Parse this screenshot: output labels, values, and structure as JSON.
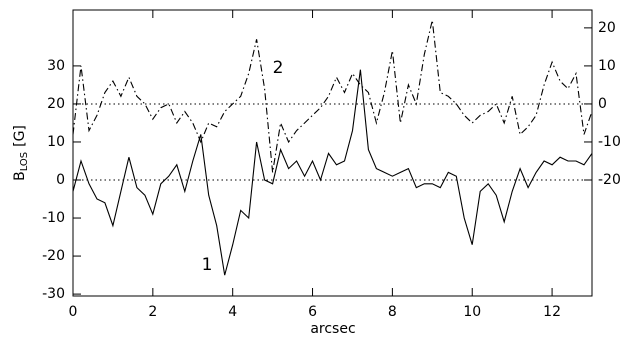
{
  "chart_data": {
    "type": "line",
    "xlabel": "arcsec",
    "ylabel": {
      "main": "B",
      "sub": "LOS",
      "rest": "[G]"
    },
    "annotations": [
      "1",
      "2"
    ],
    "x": [
      0,
      0.2,
      0.4,
      0.6,
      0.8,
      1,
      1.2,
      1.4,
      1.6,
      1.8,
      2,
      2.2,
      2.4,
      2.6,
      2.8,
      3,
      3.2,
      3.4,
      3.6,
      3.8,
      4,
      4.2,
      4.4,
      4.6,
      4.8,
      5,
      5.2,
      5.4,
      5.6,
      5.8,
      6,
      6.2,
      6.4,
      6.6,
      6.8,
      7,
      7.2,
      7.4,
      7.6,
      7.8,
      8,
      8.2,
      8.4,
      8.6,
      8.8,
      9,
      9.2,
      9.4,
      9.6,
      9.8,
      10,
      10.2,
      10.4,
      10.6,
      10.8,
      11,
      11.2,
      11.4,
      11.6,
      11.8,
      12,
      12.2,
      12.4,
      12.6,
      12.8,
      13
    ],
    "series": [
      {
        "color": "#000000",
        "style": "solid",
        "axis": "y",
        "values": [
          -3,
          5,
          -1,
          -5,
          -6,
          -12,
          -3,
          6,
          -2,
          -4,
          -9,
          -1,
          1,
          4,
          -3,
          5,
          12,
          -4,
          -12,
          -25,
          -17,
          -8,
          -10,
          10,
          0,
          -1,
          8,
          3,
          5,
          1,
          5,
          0,
          7,
          4,
          5,
          13,
          29,
          8,
          3,
          2,
          1,
          2,
          3,
          -2,
          -1,
          -1,
          -2,
          2,
          1,
          -10,
          -17,
          -3,
          -1,
          -4,
          -11,
          -3,
          3,
          -2,
          2,
          5,
          4,
          6,
          5,
          5,
          4,
          7
        ]
      },
      {
        "color": "#000000",
        "style": "dashdot",
        "axis": "y2",
        "values": [
          -8,
          10,
          -7,
          -3,
          3,
          6,
          2,
          7,
          2,
          0,
          -4,
          -1,
          0,
          -5,
          -2,
          -5,
          -10,
          -5,
          -6,
          -2,
          0,
          2,
          8,
          17,
          4,
          -18,
          -5,
          -10,
          -7,
          -5,
          -3,
          -1,
          2,
          7,
          3,
          8,
          5,
          3,
          -5,
          3,
          14,
          -5,
          5,
          0,
          13,
          22,
          3,
          2,
          0,
          -3,
          -5,
          -3,
          -2,
          0,
          -5,
          2,
          -8,
          -6,
          -3,
          5,
          11,
          6,
          4,
          8,
          -8,
          -2
        ]
      }
    ],
    "xlim": [
      0,
      13
    ],
    "xticks": [
      0,
      2,
      4,
      6,
      8,
      10,
      12
    ],
    "ylim": [
      -30.5,
      44.7
    ],
    "yticks": [
      -30,
      -20,
      -10,
      0,
      10,
      20,
      30
    ],
    "y2lim": [
      -50.5,
      24.7
    ],
    "y2ticks": [
      -20,
      -10,
      0,
      10,
      20
    ],
    "reference_lines": [
      {
        "axis": "y",
        "value": 0
      },
      {
        "axis": "y2",
        "value": 0
      }
    ]
  }
}
